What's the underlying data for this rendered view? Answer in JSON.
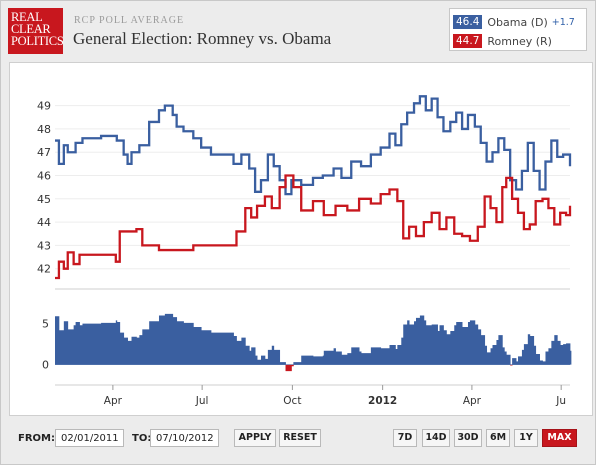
{
  "brand": {
    "logo_lines": [
      "REAL",
      "CLEAR",
      "POLITICS"
    ]
  },
  "header": {
    "kicker": "RCP POLL AVERAGE",
    "title": "General Election: Romney vs. Obama"
  },
  "legend": [
    {
      "value": "46.4",
      "name": "Obama (D)",
      "change": "+1.7",
      "color": "#3a5fa0"
    },
    {
      "value": "44.7",
      "name": "Romney (R)",
      "change": "",
      "color": "#c8171e"
    }
  ],
  "controls": {
    "from_label": "FROM:",
    "from_value": "02/01/2011",
    "to_label": "TO:",
    "to_value": "07/10/2012",
    "apply_label": "APPLY",
    "reset_label": "RESET",
    "ranges": [
      "7D",
      "14D",
      "30D",
      "6M",
      "1Y",
      "MAX"
    ],
    "active_range": "MAX"
  },
  "chart_data": {
    "type": "line",
    "x_ticks": [
      "Apr",
      "Jul",
      "Oct",
      "2012",
      "Apr",
      "Ju"
    ],
    "main_y_ticks": [
      42,
      43,
      44,
      45,
      46,
      47,
      48,
      49
    ],
    "main_ylim": [
      41.3,
      49.8
    ],
    "spread_y_ticks": [
      0,
      5
    ],
    "spread_ylim": [
      -2,
      8.5
    ],
    "x_range": [
      "2011-02-01",
      "2012-07-10"
    ],
    "series": [
      {
        "name": "Obama (D)",
        "color": "#3a5fa0",
        "points": [
          [
            "2011-02-01",
            47.5
          ],
          [
            "2011-02-05",
            46.5
          ],
          [
            "2011-02-10",
            47.3
          ],
          [
            "2011-02-14",
            47.0
          ],
          [
            "2011-02-22",
            47.4
          ],
          [
            "2011-03-01",
            47.6
          ],
          [
            "2011-03-20",
            47.7
          ],
          [
            "2011-04-05",
            47.5
          ],
          [
            "2011-04-12",
            46.9
          ],
          [
            "2011-04-16",
            46.5
          ],
          [
            "2011-04-20",
            47.0
          ],
          [
            "2011-04-28",
            47.3
          ],
          [
            "2011-05-08",
            48.3
          ],
          [
            "2011-05-18",
            48.8
          ],
          [
            "2011-05-24",
            49.0
          ],
          [
            "2011-06-01",
            48.6
          ],
          [
            "2011-06-05",
            48.1
          ],
          [
            "2011-06-12",
            47.9
          ],
          [
            "2011-06-22",
            47.6
          ],
          [
            "2011-06-30",
            47.2
          ],
          [
            "2011-07-10",
            46.9
          ],
          [
            "2011-07-25",
            46.9
          ],
          [
            "2011-08-02",
            46.5
          ],
          [
            "2011-08-10",
            46.9
          ],
          [
            "2011-08-18",
            46.3
          ],
          [
            "2011-08-24",
            45.3
          ],
          [
            "2011-08-30",
            45.8
          ],
          [
            "2011-09-06",
            46.9
          ],
          [
            "2011-09-12",
            46.4
          ],
          [
            "2011-09-18",
            45.8
          ],
          [
            "2011-09-24",
            45.2
          ],
          [
            "2011-09-30",
            45.8
          ],
          [
            "2011-10-10",
            45.6
          ],
          [
            "2011-10-22",
            45.9
          ],
          [
            "2011-11-01",
            46.0
          ],
          [
            "2011-11-12",
            46.3
          ],
          [
            "2011-11-20",
            45.9
          ],
          [
            "2011-11-30",
            46.6
          ],
          [
            "2011-12-10",
            46.4
          ],
          [
            "2011-12-20",
            46.9
          ],
          [
            "2011-12-30",
            47.2
          ],
          [
            "2012-01-08",
            47.8
          ],
          [
            "2012-01-14",
            47.3
          ],
          [
            "2012-01-20",
            48.2
          ],
          [
            "2012-01-26",
            48.7
          ],
          [
            "2012-02-02",
            49.1
          ],
          [
            "2012-02-08",
            49.4
          ],
          [
            "2012-02-14",
            48.8
          ],
          [
            "2012-02-20",
            49.3
          ],
          [
            "2012-02-26",
            48.5
          ],
          [
            "2012-03-03",
            47.9
          ],
          [
            "2012-03-10",
            48.3
          ],
          [
            "2012-03-16",
            48.7
          ],
          [
            "2012-03-22",
            48.0
          ],
          [
            "2012-03-28",
            48.6
          ],
          [
            "2012-04-04",
            48.1
          ],
          [
            "2012-04-10",
            47.4
          ],
          [
            "2012-04-16",
            46.6
          ],
          [
            "2012-04-22",
            47.0
          ],
          [
            "2012-04-28",
            47.6
          ],
          [
            "2012-05-04",
            47.1
          ],
          [
            "2012-05-10",
            45.8
          ],
          [
            "2012-05-16",
            45.4
          ],
          [
            "2012-05-22",
            46.2
          ],
          [
            "2012-05-28",
            47.4
          ],
          [
            "2012-06-03",
            46.2
          ],
          [
            "2012-06-09",
            45.4
          ],
          [
            "2012-06-15",
            46.6
          ],
          [
            "2012-06-21",
            47.5
          ],
          [
            "2012-06-27",
            46.8
          ],
          [
            "2012-07-03",
            46.9
          ],
          [
            "2012-07-10",
            46.4
          ]
        ]
      },
      {
        "name": "Romney (R)",
        "color": "#c8171e",
        "points": [
          [
            "2011-02-01",
            41.6
          ],
          [
            "2011-02-05",
            42.3
          ],
          [
            "2011-02-10",
            42.0
          ],
          [
            "2011-02-14",
            42.7
          ],
          [
            "2011-02-20",
            42.2
          ],
          [
            "2011-02-26",
            42.6
          ],
          [
            "2011-03-15",
            42.6
          ],
          [
            "2011-04-04",
            42.3
          ],
          [
            "2011-04-08",
            43.6
          ],
          [
            "2011-04-25",
            43.7
          ],
          [
            "2011-05-01",
            43.0
          ],
          [
            "2011-05-18",
            42.8
          ],
          [
            "2011-06-05",
            42.8
          ],
          [
            "2011-06-22",
            43.0
          ],
          [
            "2011-07-10",
            43.0
          ],
          [
            "2011-07-28",
            43.0
          ],
          [
            "2011-08-05",
            43.6
          ],
          [
            "2011-08-14",
            44.6
          ],
          [
            "2011-08-20",
            44.2
          ],
          [
            "2011-08-26",
            44.7
          ],
          [
            "2011-09-03",
            45.1
          ],
          [
            "2011-09-10",
            44.6
          ],
          [
            "2011-09-18",
            45.5
          ],
          [
            "2011-09-24",
            46.0
          ],
          [
            "2011-10-02",
            45.5
          ],
          [
            "2011-10-10",
            44.5
          ],
          [
            "2011-10-22",
            44.9
          ],
          [
            "2011-11-02",
            44.3
          ],
          [
            "2011-11-14",
            44.7
          ],
          [
            "2011-11-26",
            44.5
          ],
          [
            "2011-12-08",
            45.0
          ],
          [
            "2011-12-20",
            44.8
          ],
          [
            "2011-12-30",
            45.2
          ],
          [
            "2012-01-08",
            45.4
          ],
          [
            "2012-01-16",
            44.9
          ],
          [
            "2012-01-22",
            43.3
          ],
          [
            "2012-01-28",
            43.8
          ],
          [
            "2012-02-04",
            43.4
          ],
          [
            "2012-02-12",
            44.0
          ],
          [
            "2012-02-20",
            44.4
          ],
          [
            "2012-02-28",
            43.7
          ],
          [
            "2012-03-06",
            44.2
          ],
          [
            "2012-03-14",
            43.5
          ],
          [
            "2012-03-22",
            43.4
          ],
          [
            "2012-03-30",
            43.2
          ],
          [
            "2012-04-07",
            43.8
          ],
          [
            "2012-04-14",
            45.1
          ],
          [
            "2012-04-20",
            44.6
          ],
          [
            "2012-04-26",
            44.0
          ],
          [
            "2012-05-02",
            45.5
          ],
          [
            "2012-05-06",
            45.9
          ],
          [
            "2012-05-12",
            45.0
          ],
          [
            "2012-05-18",
            44.4
          ],
          [
            "2012-05-24",
            43.7
          ],
          [
            "2012-05-30",
            43.9
          ],
          [
            "2012-06-05",
            44.9
          ],
          [
            "2012-06-12",
            45.0
          ],
          [
            "2012-06-18",
            44.6
          ],
          [
            "2012-06-24",
            43.9
          ],
          [
            "2012-06-30",
            44.4
          ],
          [
            "2012-07-06",
            44.3
          ],
          [
            "2012-07-10",
            44.7
          ]
        ]
      }
    ],
    "spread_series": {
      "name": "Obama (D) minus Romney (R)",
      "positive_color": "#3a5fa0",
      "negative_color": "#c8171e"
    }
  }
}
